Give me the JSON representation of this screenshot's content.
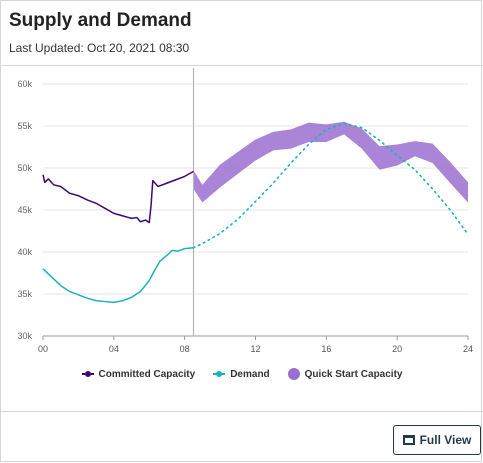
{
  "header": {
    "title": "Supply and Demand",
    "updated": "Last Updated: Oct 20, 2021 08:30"
  },
  "actions": {
    "full_view_label": "Full View",
    "full_view_icon": "window-icon"
  },
  "colors": {
    "committed": "#3a0a78",
    "demand": "#18b3c0",
    "quick": "#9b6fd0",
    "now_line": "#b5b5b5",
    "grid": "#e6e6e6"
  },
  "chart_data": {
    "type": "line",
    "xlim": [
      0,
      24
    ],
    "ylim": [
      30000,
      60000
    ],
    "x_ticks": [
      "00",
      "04",
      "08",
      "12",
      "16",
      "20",
      "24"
    ],
    "x_tick_values": [
      0,
      4,
      8,
      12,
      16,
      20,
      24
    ],
    "y_ticks": [
      "30k",
      "35k",
      "40k",
      "45k",
      "50k",
      "55k",
      "60k"
    ],
    "y_tick_values": [
      30000,
      35000,
      40000,
      45000,
      50000,
      55000,
      60000
    ],
    "now_marker_x": 8.5,
    "legend": [
      "Committed Capacity",
      "Demand",
      "Quick Start Capacity"
    ],
    "series": [
      {
        "name": "Committed Capacity",
        "x": [
          0.0,
          0.1,
          0.3,
          0.6,
          1.0,
          1.5,
          2.0,
          2.5,
          3.0,
          3.5,
          4.0,
          4.5,
          5.0,
          5.3,
          5.5,
          5.8,
          6.0,
          6.1,
          6.2,
          6.5,
          7.0,
          7.5,
          8.0,
          8.5
        ],
        "values": [
          49200,
          48300,
          48700,
          48000,
          47800,
          47000,
          46700,
          46200,
          45800,
          45200,
          44600,
          44300,
          44000,
          44100,
          43600,
          43800,
          43500,
          45500,
          48500,
          47800,
          48200,
          48600,
          49000,
          49600
        ]
      },
      {
        "name": "Demand",
        "x": [
          0.0,
          0.5,
          1.0,
          1.5,
          2.0,
          2.5,
          3.0,
          3.5,
          4.0,
          4.5,
          5.0,
          5.5,
          6.0,
          6.3,
          6.6,
          7.0,
          7.3,
          7.6,
          8.0,
          8.5
        ],
        "values": [
          38000,
          37000,
          36000,
          35300,
          34900,
          34500,
          34200,
          34100,
          34000,
          34200,
          34600,
          35300,
          36600,
          37800,
          38900,
          39600,
          40200,
          40100,
          40400,
          40500
        ]
      },
      {
        "name": "Demand Forecast",
        "x": [
          8.5,
          9,
          10,
          11,
          12,
          13,
          14,
          15,
          16,
          17,
          18,
          19,
          20,
          21,
          22,
          23,
          24
        ],
        "values": [
          40500,
          41000,
          42200,
          43900,
          46000,
          48200,
          50600,
          52800,
          54600,
          55300,
          54800,
          53300,
          51500,
          49800,
          47500,
          45000,
          42100
        ]
      },
      {
        "name": "Quick Start Capacity",
        "x": [
          8.5,
          9,
          10,
          11,
          12,
          13,
          14,
          15,
          16,
          17,
          18,
          19,
          20,
          21,
          22,
          23,
          24
        ],
        "lower": [
          47500,
          45900,
          47700,
          49300,
          50900,
          52100,
          52300,
          53100,
          53100,
          54000,
          52300,
          49800,
          50300,
          51400,
          50600,
          48200,
          45900
        ],
        "upper": [
          49700,
          48000,
          50400,
          51900,
          53400,
          54300,
          54600,
          55400,
          55200,
          55500,
          54700,
          52600,
          52800,
          53200,
          52900,
          50700,
          48300
        ]
      }
    ]
  }
}
